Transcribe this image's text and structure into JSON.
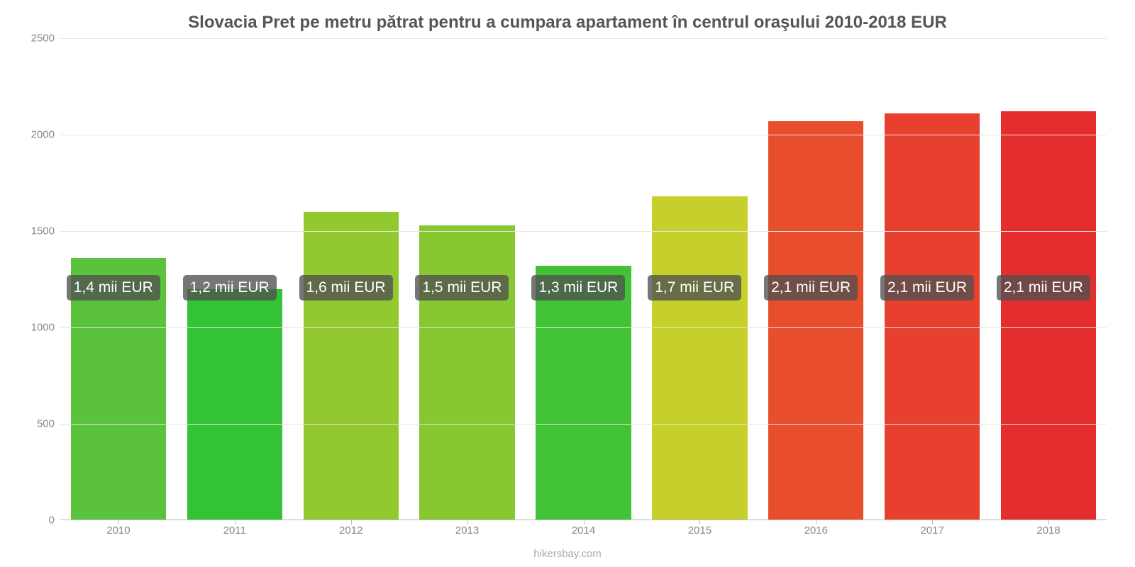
{
  "chart": {
    "type": "bar",
    "title": "Slovacia Pret pe metru pătrat pentru a cumpara apartament în centrul oraşului 2010-2018 EUR",
    "title_fontsize": 24,
    "title_color": "#555555",
    "background_color": "#ffffff",
    "grid_color": "#e6e6e6",
    "axis_color": "#bbbbbb",
    "tick_color": "#888888",
    "tick_fontsize": 15,
    "bar_width_ratio": 0.82,
    "ylim": [
      0,
      2500
    ],
    "ytick_step": 500,
    "yticks": [
      {
        "value": 0,
        "label": "0"
      },
      {
        "value": 500,
        "label": "500"
      },
      {
        "value": 1000,
        "label": "1000"
      },
      {
        "value": 1500,
        "label": "1500"
      },
      {
        "value": 2000,
        "label": "2000"
      },
      {
        "value": 2500,
        "label": "2500"
      }
    ],
    "categories": [
      "2010",
      "2011",
      "2012",
      "2013",
      "2014",
      "2015",
      "2016",
      "2017",
      "2018"
    ],
    "values": [
      1360,
      1200,
      1600,
      1530,
      1320,
      1680,
      2070,
      2110,
      2120
    ],
    "bar_colors": [
      "#5bc23b",
      "#34c335",
      "#92c92e",
      "#87c730",
      "#42c335",
      "#c6d02a",
      "#e84e2d",
      "#e7402e",
      "#e52d2d"
    ],
    "bar_labels": [
      "1,4 mii EUR",
      "1,2 mii EUR",
      "1,6 mii EUR",
      "1,5 mii EUR",
      "1,3 mii EUR",
      "1,7 mii EUR",
      "2,1 mii EUR",
      "2,1 mii EUR",
      "2,1 mii EUR"
    ],
    "label_bg": "rgba(80,80,80,0.78)",
    "label_color": "#ffffff",
    "label_fontsize": 21,
    "label_y_position_ratio": 0.57,
    "footer": "hikersbay.com",
    "footer_color": "#aaaaaa"
  }
}
